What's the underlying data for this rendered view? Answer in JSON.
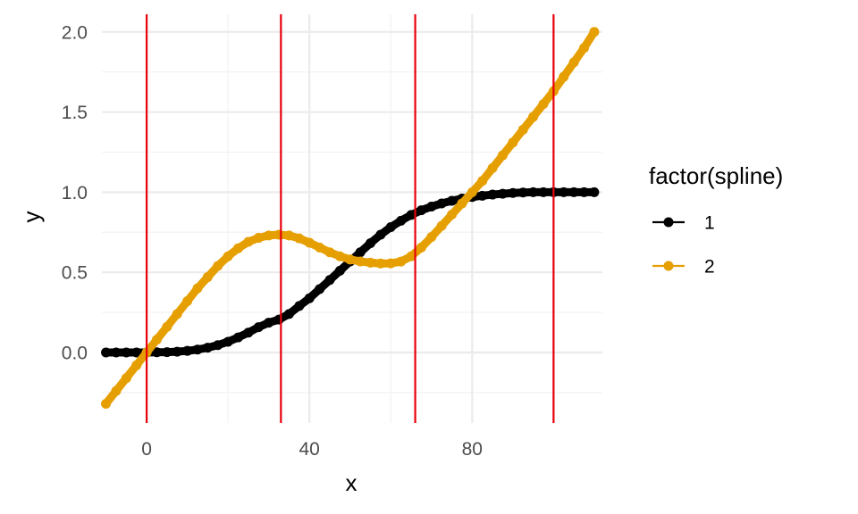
{
  "chart_data": {
    "type": "scatter",
    "xlabel": "x",
    "ylabel": "y",
    "xlim": [
      -11,
      112
    ],
    "ylim": [
      -0.44,
      2.11
    ],
    "x_ticks": [
      0,
      40,
      80
    ],
    "x_tick_labels": [
      "0",
      "40",
      "80"
    ],
    "x_minor_ticks": [
      20,
      60,
      100
    ],
    "y_ticks": [
      0.0,
      0.5,
      1.0,
      1.5,
      2.0
    ],
    "y_tick_labels": [
      "0.0",
      "0.5",
      "1.0",
      "1.5",
      "2.0"
    ],
    "y_minor_ticks": [
      -0.25,
      0.25,
      0.75,
      1.25,
      1.75
    ],
    "grid": true,
    "vertical_lines": [
      0,
      33,
      66,
      100
    ],
    "vertical_line_color": "#e8000b",
    "legend": {
      "title": "factor(spline)",
      "position": "right"
    },
    "x": [
      -10,
      -7.5,
      -5,
      -2.5,
      0,
      2.5,
      5,
      7.5,
      10,
      12.5,
      15,
      17.5,
      20,
      22.5,
      25,
      27.5,
      30,
      32.5,
      35,
      37.5,
      40,
      42.5,
      45,
      47.5,
      50,
      52.5,
      55,
      57.5,
      60,
      62.5,
      65,
      67.5,
      70,
      72.5,
      75,
      77.5,
      80,
      82.5,
      85,
      87.5,
      90,
      92.5,
      95,
      97.5,
      100,
      102.5,
      105,
      107.5,
      110
    ],
    "series": [
      {
        "name": "1",
        "color": "#000000",
        "values": [
          0.0,
          0.0,
          0.0,
          0.0,
          0.0,
          0.001,
          0.002,
          0.005,
          0.01,
          0.018,
          0.03,
          0.046,
          0.067,
          0.094,
          0.124,
          0.158,
          0.186,
          0.205,
          0.24,
          0.29,
          0.338,
          0.395,
          0.452,
          0.51,
          0.568,
          0.625,
          0.682,
          0.735,
          0.782,
          0.822,
          0.858,
          0.887,
          0.91,
          0.93,
          0.946,
          0.96,
          0.97,
          0.978,
          0.985,
          0.99,
          0.995,
          0.998,
          1.0,
          1.0,
          1.0,
          1.0,
          1.0,
          1.0,
          1.0
        ]
      },
      {
        "name": "2",
        "color": "#e69f00",
        "values": [
          -0.32,
          -0.24,
          -0.16,
          -0.08,
          0.0,
          0.08,
          0.16,
          0.24,
          0.32,
          0.4,
          0.47,
          0.54,
          0.6,
          0.65,
          0.69,
          0.715,
          0.73,
          0.735,
          0.73,
          0.712,
          0.685,
          0.655,
          0.625,
          0.6,
          0.58,
          0.568,
          0.56,
          0.555,
          0.556,
          0.567,
          0.6,
          0.655,
          0.72,
          0.79,
          0.86,
          0.93,
          1.0,
          1.07,
          1.15,
          1.23,
          1.31,
          1.39,
          1.47,
          1.55,
          1.63,
          1.72,
          1.81,
          1.9,
          2.0
        ]
      }
    ]
  }
}
